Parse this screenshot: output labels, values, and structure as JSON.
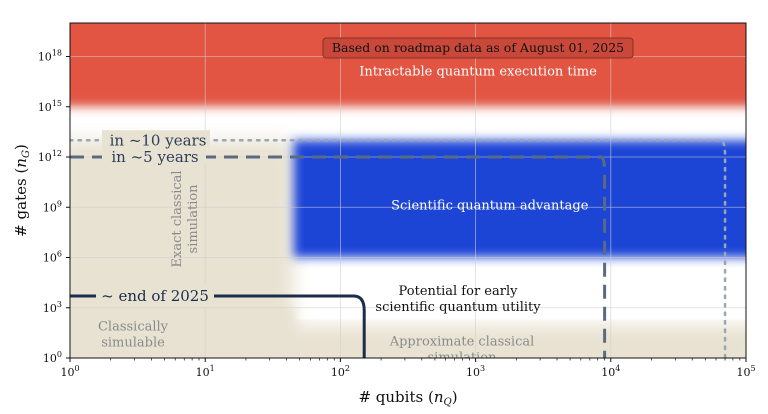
{
  "chart_data": {
    "type": "area",
    "title": "",
    "xlabel": "# qubits (n_Q)",
    "ylabel": "# gates (n_G)",
    "xscale": "log",
    "yscale": "log",
    "xlim": [
      1,
      100000
    ],
    "ylim": [
      1,
      1e+20
    ],
    "grid": true,
    "x_ticks": [
      {
        "value": 1,
        "base": "10",
        "exp": "0"
      },
      {
        "value": 10,
        "base": "10",
        "exp": "1"
      },
      {
        "value": 100,
        "base": "10",
        "exp": "2"
      },
      {
        "value": 1000,
        "base": "10",
        "exp": "3"
      },
      {
        "value": 10000,
        "base": "10",
        "exp": "4"
      },
      {
        "value": 100000,
        "base": "10",
        "exp": "5"
      }
    ],
    "y_ticks": [
      {
        "value": 1,
        "base": "10",
        "exp": "0"
      },
      {
        "value": 1000,
        "base": "10",
        "exp": "3"
      },
      {
        "value": 1000000,
        "base": "10",
        "exp": "6"
      },
      {
        "value": 1000000000,
        "base": "10",
        "exp": "9"
      },
      {
        "value": 1000000000000.0,
        "base": "10",
        "exp": "12"
      },
      {
        "value": 1000000000000000.0,
        "base": "10",
        "exp": "15"
      },
      {
        "value": 1e+18,
        "base": "10",
        "exp": "18"
      }
    ],
    "annotation_box": "Based on roadmap data as of August 01, 2025",
    "regions": [
      {
        "name": "Intractable quantum execution time",
        "color": "#e25443",
        "x": [
          1,
          100000
        ],
        "y": [
          1000000000000000.0,
          1e+20
        ]
      },
      {
        "name": "Scientific quantum advantage",
        "color": "#1f44d6",
        "x": [
          45,
          100000
        ],
        "y": [
          1000000,
          10000000000000.0
        ]
      },
      {
        "name": "Exact classical simulation",
        "color": "#e8e2d2",
        "x": [
          1,
          45
        ],
        "y": [
          1,
          10000000000000.0
        ]
      },
      {
        "name": "Approximate classical simulation",
        "color": "#e8e2d2",
        "x": [
          1,
          100000
        ],
        "y": [
          1,
          100
        ]
      },
      {
        "name": "Classically simulable",
        "color": "#e8e2d2",
        "x": [
          1,
          45
        ],
        "y": [
          1,
          1000
        ]
      },
      {
        "name": "Potential for early scientific quantum utility",
        "color": "#ffffff",
        "x": [
          45,
          100000
        ],
        "y": [
          100,
          1000000
        ]
      }
    ],
    "region_labels": {
      "intractable": "Intractable quantum execution time",
      "advantage": "Scientific quantum advantage",
      "utility_line1": "Potential for early",
      "utility_line2": "scientific quantum utility",
      "exact_line1": "Exact classical",
      "exact_line2": "simulation",
      "classically_line1": "Classically",
      "classically_line2": "simulable",
      "approx_line1": "Approximate classical",
      "approx_line2": "simulation"
    },
    "series": [
      {
        "name": "~ end of 2025",
        "style": "solid",
        "color": "#1b2d4a",
        "points": [
          [
            1,
            5000
          ],
          [
            125,
            5000
          ],
          [
            150,
            700
          ],
          [
            150,
            1
          ]
        ]
      },
      {
        "name": "in ~5 years",
        "style": "dashed",
        "color": "#5a6a80",
        "points": [
          [
            1,
            1000000000000.0
          ],
          [
            8500,
            1000000000000.0
          ],
          [
            9000,
            100000000000.0
          ],
          [
            9000,
            1
          ]
        ]
      },
      {
        "name": "in ~10 years",
        "style": "dotted",
        "color": "#9aa6b4",
        "points": [
          [
            1,
            10000000000000.0
          ],
          [
            65000,
            10000000000000.0
          ],
          [
            70000,
            1000000000000.0
          ],
          [
            70000,
            1
          ]
        ]
      }
    ]
  }
}
